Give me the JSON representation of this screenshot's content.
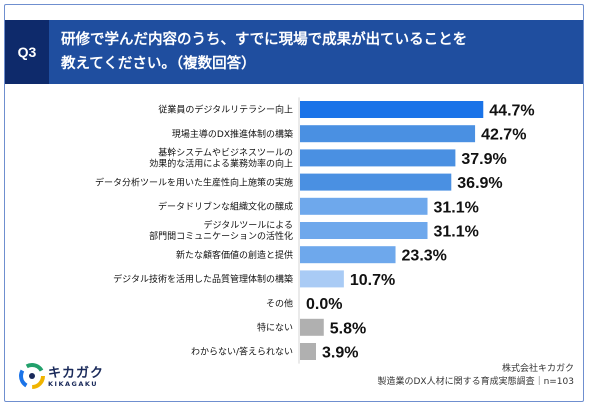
{
  "header": {
    "badge": "Q3",
    "question": "研修で学んだ内容のうち、すでに現場で成果が出ていることを\n教えてください。（複数回答）"
  },
  "chart_data": {
    "type": "bar",
    "orientation": "horizontal",
    "categories": [
      "従業員のデジタルリテラシー向上",
      "現場主導のDX推進体制の構築",
      "基幹システムやビジネスツールの\n効果的な活用による業務効率の向上",
      "データ分析ツールを用いた生産性向上施策の実施",
      "データドリブンな組織文化の醸成",
      "デジタルツールによる\n部門間コミュニケーションの活性化",
      "新たな顧客価値の創造と提供",
      "デジタル技術を活用した品質管理体制の構築",
      "その他",
      "特にない",
      "わからない/答えられない"
    ],
    "values": [
      44.7,
      42.7,
      37.9,
      36.9,
      31.1,
      31.1,
      23.3,
      10.7,
      0.0,
      5.8,
      3.9
    ],
    "value_labels": [
      "44.7%",
      "42.7%",
      "37.9%",
      "36.9%",
      "31.1%",
      "31.1%",
      "23.3%",
      "10.7%",
      "0.0%",
      "5.8%",
      "3.9%"
    ],
    "bar_colors": [
      "#1a73e8",
      "#4a90e2",
      "#4a90e2",
      "#4a90e2",
      "#6ea8ec",
      "#6ea8ec",
      "#6ea8ec",
      "#a9cbf5",
      "#b0b0b0",
      "#b0b0b0",
      "#b0b0b0"
    ],
    "xlim": [
      0,
      100
    ],
    "grid": false,
    "legend": "none"
  },
  "footer": {
    "company": "株式会社キカガク",
    "survey": "製造業のDX人材に関する育成実態調査｜n=103"
  },
  "logo": {
    "name": "キカガク",
    "sub": "KIKAGAKU"
  }
}
